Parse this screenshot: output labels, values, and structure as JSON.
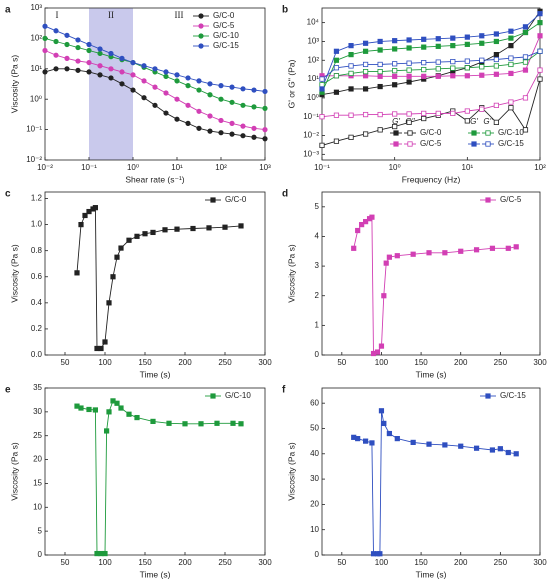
{
  "chart_data": [
    {
      "type": "line",
      "panel": "a",
      "xlabel": "Shear rate (s⁻¹)",
      "ylabel": "Viscosity (Pa s)",
      "xscale": "log",
      "yscale": "log",
      "legend": "upper right",
      "xlim": [
        0.01,
        1000
      ],
      "ylim": [
        0.01,
        1000
      ],
      "xticks": [
        {
          "value": 0.01,
          "label": "10⁻²"
        },
        {
          "value": 0.1,
          "label": "10⁻¹"
        },
        {
          "value": 1,
          "label": "10⁰"
        },
        {
          "value": 10,
          "label": "10¹"
        },
        {
          "value": 100,
          "label": "10²"
        },
        {
          "value": 1000,
          "label": "10³"
        }
      ],
      "yticks": [
        {
          "value": 0.01,
          "label": "10⁻²"
        },
        {
          "value": 0.1,
          "label": "10⁻¹"
        },
        {
          "value": 1,
          "label": "10⁰"
        },
        {
          "value": 10,
          "label": "10¹"
        },
        {
          "value": 100,
          "label": "10²"
        },
        {
          "value": 1000,
          "label": "10³"
        }
      ],
      "shaded_region": [
        0.1,
        1
      ],
      "region_labels": [
        "I",
        "II",
        "III"
      ],
      "x": [
        0.01,
        0.0178,
        0.0316,
        0.0562,
        0.1,
        0.178,
        0.316,
        0.562,
        1,
        1.78,
        3.16,
        5.62,
        10,
        17.8,
        31.6,
        56.2,
        100,
        178,
        316,
        562,
        1000
      ],
      "series": [
        {
          "name": "G/C-0",
          "color": "#222222",
          "values": [
            7.9,
            10,
            10,
            8.9,
            7.9,
            6.3,
            5.0,
            3.2,
            2.0,
            1.12,
            0.63,
            0.35,
            0.22,
            0.16,
            0.11,
            0.089,
            0.079,
            0.071,
            0.063,
            0.056,
            0.05
          ]
        },
        {
          "name": "G/C-5",
          "color": "#d23fb4",
          "values": [
            40,
            28,
            22,
            18,
            16,
            12.6,
            10,
            7.9,
            6.3,
            4.0,
            2.5,
            1.6,
            1.0,
            0.63,
            0.4,
            0.28,
            0.2,
            0.16,
            0.13,
            0.11,
            0.1
          ]
        },
        {
          "name": "G/C-10",
          "color": "#1e9a3c",
          "values": [
            100,
            79,
            63,
            50,
            40,
            32,
            25,
            20,
            16,
            11.2,
            7.9,
            5.6,
            4.0,
            2.8,
            2.0,
            1.4,
            1.0,
            0.79,
            0.63,
            0.56,
            0.5
          ]
        },
        {
          "name": "G/C-15",
          "color": "#2f4fc0",
          "values": [
            251,
            178,
            126,
            89,
            63,
            45,
            32,
            22,
            16,
            12.6,
            10,
            7.9,
            6.3,
            5.0,
            4.0,
            3.2,
            2.8,
            2.5,
            2.2,
            2.0,
            1.8
          ]
        }
      ]
    },
    {
      "type": "modulus",
      "panel": "b",
      "xlabel": "Frequency (Hz)",
      "ylabel": "G' or G'' (Pa)",
      "xscale": "log",
      "yscale": "log",
      "legend": "lower right",
      "storage_label": "G'",
      "loss_label": "G''",
      "xlim": [
        0.1,
        100
      ],
      "ylim": [
        0.0005,
        60000
      ],
      "xticks": [
        {
          "value": 0.1,
          "label": "10⁻¹"
        },
        {
          "value": 1,
          "label": "10⁰"
        },
        {
          "value": 10,
          "label": "10¹"
        },
        {
          "value": 100,
          "label": "10²"
        }
      ],
      "yticks": [
        {
          "value": 0.001,
          "label": "10⁻³"
        },
        {
          "value": 0.01,
          "label": "10⁻²"
        },
        {
          "value": 0.1,
          "label": "10⁻¹"
        },
        {
          "value": 1,
          "label": "10⁰"
        },
        {
          "value": 10,
          "label": "10¹"
        },
        {
          "value": 100,
          "label": "10²"
        },
        {
          "value": 1000,
          "label": "10³"
        },
        {
          "value": 10000,
          "label": "10⁴"
        }
      ],
      "x": [
        0.1,
        0.158,
        0.251,
        0.398,
        0.631,
        1,
        1.58,
        2.51,
        3.98,
        6.31,
        10,
        15.8,
        25.1,
        39.8,
        63.1,
        100
      ],
      "series": [
        {
          "name": "G/C-0",
          "color": "#222222",
          "storage": [
            1.5,
            2,
            3,
            3,
            4,
            5,
            7,
            10,
            15,
            25,
            40,
            80,
            200,
            600,
            3000,
            40000
          ],
          "loss": [
            0.003,
            0.005,
            0.008,
            0.012,
            0.02,
            0.03,
            0.05,
            0.08,
            0.12,
            0.2,
            0.06,
            0.3,
            0.05,
            0.3,
            0.02,
            10
          ]
        },
        {
          "name": "G/C-5",
          "color": "#d23fb4",
          "storage": [
            15,
            15,
            15,
            15,
            14,
            14,
            14,
            14,
            14,
            15,
            15,
            16,
            18,
            20,
            30,
            2000
          ],
          "loss": [
            0.1,
            0.12,
            0.12,
            0.13,
            0.13,
            0.14,
            0.14,
            0.15,
            0.15,
            0.15,
            0.2,
            0.25,
            0.4,
            0.6,
            1,
            30
          ]
        },
        {
          "name": "G/C-10",
          "color": "#1e9a3c",
          "storage": [
            2,
            100,
            200,
            300,
            350,
            400,
            450,
            500,
            550,
            600,
            700,
            800,
            1000,
            1500,
            3000,
            10000
          ],
          "loss": [
            5,
            15,
            20,
            25,
            25,
            28,
            30,
            32,
            35,
            38,
            40,
            45,
            50,
            60,
            80,
            300
          ]
        },
        {
          "name": "G/C-15",
          "color": "#2f4fc0",
          "storage": [
            3,
            300,
            600,
            800,
            1000,
            1100,
            1200,
            1300,
            1400,
            1500,
            1700,
            2000,
            2500,
            3500,
            6000,
            30000
          ],
          "loss": [
            10,
            40,
            50,
            60,
            60,
            65,
            70,
            75,
            80,
            85,
            90,
            100,
            110,
            130,
            150,
            300
          ]
        }
      ]
    },
    {
      "type": "line",
      "panel": "c",
      "xlabel": "Time (s)",
      "ylabel": "Viscosity (Pa s)",
      "legend": "upper right",
      "xlim": [
        25,
        300
      ],
      "ylim": [
        0,
        1.25
      ],
      "xticks": [
        50,
        100,
        150,
        200,
        250,
        300
      ],
      "yticks": [
        {
          "value": 0,
          "label": "0.0"
        },
        0.2,
        0.4,
        0.6,
        0.8,
        {
          "value": 1,
          "label": "1.0"
        },
        1.2
      ],
      "x": [
        65,
        70,
        75,
        80,
        85,
        88,
        90,
        95,
        100,
        105,
        110,
        115,
        120,
        130,
        140,
        150,
        160,
        175,
        190,
        210,
        230,
        250,
        270
      ],
      "series": [
        {
          "name": "G/C-0",
          "color": "#222222",
          "values": [
            0.63,
            1.0,
            1.07,
            1.1,
            1.12,
            1.13,
            0.05,
            0.05,
            0.1,
            0.4,
            0.6,
            0.75,
            0.82,
            0.88,
            0.91,
            0.93,
            0.94,
            0.96,
            0.965,
            0.97,
            0.975,
            0.98,
            0.99
          ]
        }
      ]
    },
    {
      "type": "line",
      "panel": "d",
      "xlabel": "Time (s)",
      "ylabel": "Viscosity (Pa s)",
      "legend": "upper right",
      "xlim": [
        25,
        300
      ],
      "ylim": [
        0,
        5.5
      ],
      "xticks": [
        50,
        100,
        150,
        200,
        250,
        300
      ],
      "yticks": [
        0,
        1,
        2,
        3,
        4,
        5
      ],
      "x": [
        65,
        70,
        75,
        80,
        85,
        88,
        90,
        95,
        100,
        103,
        106,
        110,
        120,
        140,
        160,
        180,
        200,
        220,
        240,
        260,
        270
      ],
      "series": [
        {
          "name": "G/C-5",
          "color": "#d23fb4",
          "values": [
            3.6,
            4.2,
            4.4,
            4.5,
            4.6,
            4.65,
            0.05,
            0.1,
            0.3,
            2.0,
            3.1,
            3.3,
            3.35,
            3.4,
            3.45,
            3.45,
            3.5,
            3.55,
            3.6,
            3.6,
            3.65
          ]
        }
      ]
    },
    {
      "type": "line",
      "panel": "e",
      "xlabel": "Time (s)",
      "ylabel": "Viscosity (Pa s)",
      "legend": "upper right",
      "xlim": [
        25,
        300
      ],
      "ylim": [
        0,
        35
      ],
      "xticks": [
        50,
        100,
        150,
        200,
        250,
        300
      ],
      "yticks": [
        0,
        5,
        10,
        15,
        20,
        25,
        30,
        35
      ],
      "x": [
        65,
        70,
        80,
        88,
        90,
        95,
        100,
        102,
        105,
        110,
        115,
        120,
        130,
        140,
        160,
        180,
        200,
        220,
        240,
        260,
        270
      ],
      "series": [
        {
          "name": "G/C-10",
          "color": "#1e9a3c",
          "values": [
            31.2,
            30.8,
            30.5,
            30.4,
            0.3,
            0.3,
            0.3,
            26,
            30,
            32.3,
            31.8,
            30.8,
            29.5,
            28.8,
            28,
            27.6,
            27.5,
            27.5,
            27.6,
            27.6,
            27.5
          ]
        }
      ]
    },
    {
      "type": "line",
      "panel": "f",
      "xlabel": "Time (s)",
      "ylabel": "Viscosity (Pa s)",
      "legend": "upper right",
      "xlim": [
        25,
        300
      ],
      "ylim": [
        0,
        66
      ],
      "xticks": [
        50,
        100,
        150,
        200,
        250,
        300
      ],
      "yticks": [
        0,
        10,
        20,
        30,
        40,
        50,
        60
      ],
      "x": [
        65,
        70,
        80,
        88,
        90,
        95,
        98,
        100,
        103,
        110,
        120,
        140,
        160,
        180,
        200,
        220,
        240,
        250,
        260,
        270
      ],
      "series": [
        {
          "name": "G/C-15",
          "color": "#2f4fc0",
          "values": [
            46.5,
            46,
            45,
            44.3,
            0.5,
            0.5,
            0.5,
            57,
            52,
            48,
            46,
            44.5,
            43.8,
            43.5,
            43,
            42.2,
            41.5,
            42,
            40.5,
            40
          ]
        }
      ]
    }
  ]
}
